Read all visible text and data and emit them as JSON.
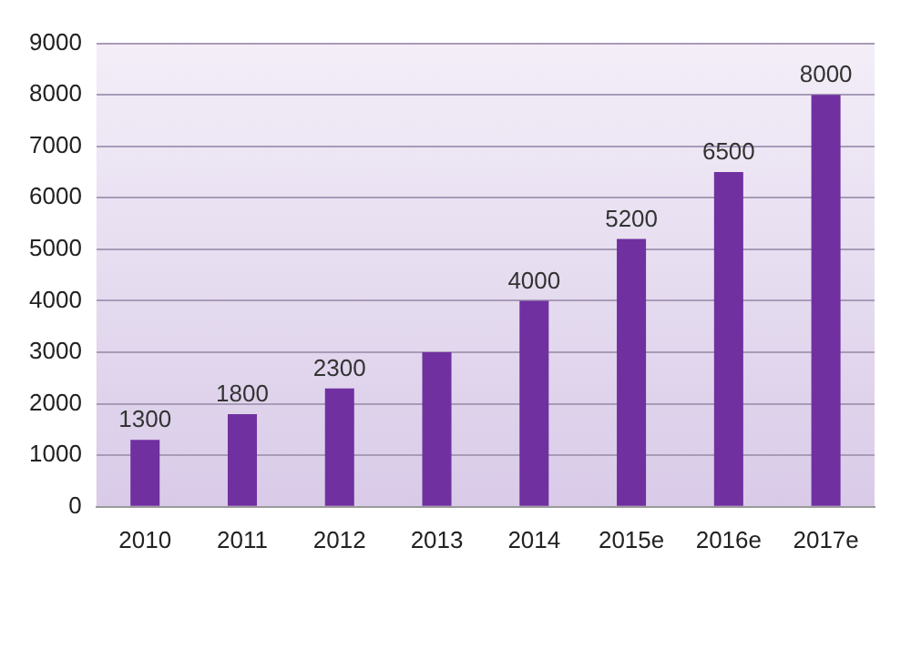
{
  "chart_data": {
    "type": "bar",
    "categories": [
      "2010",
      "2011",
      "2012",
      "2013",
      "2014",
      "2015e",
      "2016e",
      "2017e"
    ],
    "values": [
      1300,
      1800,
      2300,
      3000,
      4000,
      5200,
      6500,
      8000
    ],
    "value_labels": [
      "1300",
      "1800",
      "2300",
      null,
      "4000",
      "5200",
      "6500",
      "8000"
    ],
    "color": "#7030a0",
    "ylim": [
      0,
      9000
    ],
    "yticks": [
      0,
      1000,
      2000,
      3000,
      4000,
      5000,
      6000,
      7000,
      8000,
      9000
    ],
    "grid": "y",
    "legend": false
  }
}
